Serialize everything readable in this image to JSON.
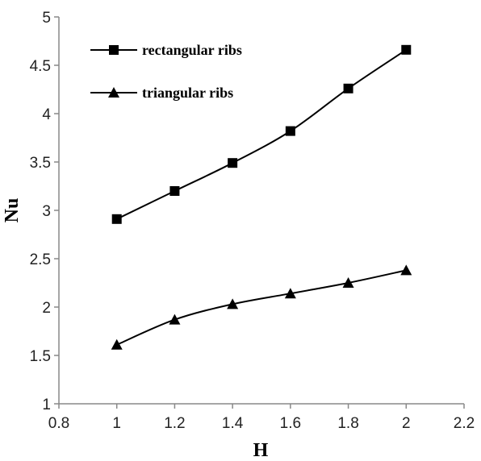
{
  "chart_data": {
    "type": "line",
    "xlabel": "H",
    "ylabel": "Nu",
    "xlim": [
      0.8,
      2.2
    ],
    "ylim": [
      1,
      5
    ],
    "xticks": [
      "0.8",
      "1",
      "1.2",
      "1.4",
      "1.6",
      "1.8",
      "2",
      "2.2"
    ],
    "yticks": [
      "1",
      "1.5",
      "2",
      "2.5",
      "3",
      "3.5",
      "4",
      "4.5",
      "5"
    ],
    "x": [
      1,
      1.2,
      1.4,
      1.6,
      1.8,
      2
    ],
    "grid": false,
    "legend_position": "top-left",
    "series": [
      {
        "name": "rectangular ribs",
        "marker": "square",
        "values": [
          2.91,
          3.2,
          3.49,
          3.82,
          4.26,
          4.66
        ]
      },
      {
        "name": "triangular ribs",
        "marker": "triangle",
        "values": [
          1.61,
          1.87,
          2.03,
          2.14,
          2.25,
          2.38
        ]
      }
    ],
    "line_color": "#000000"
  }
}
